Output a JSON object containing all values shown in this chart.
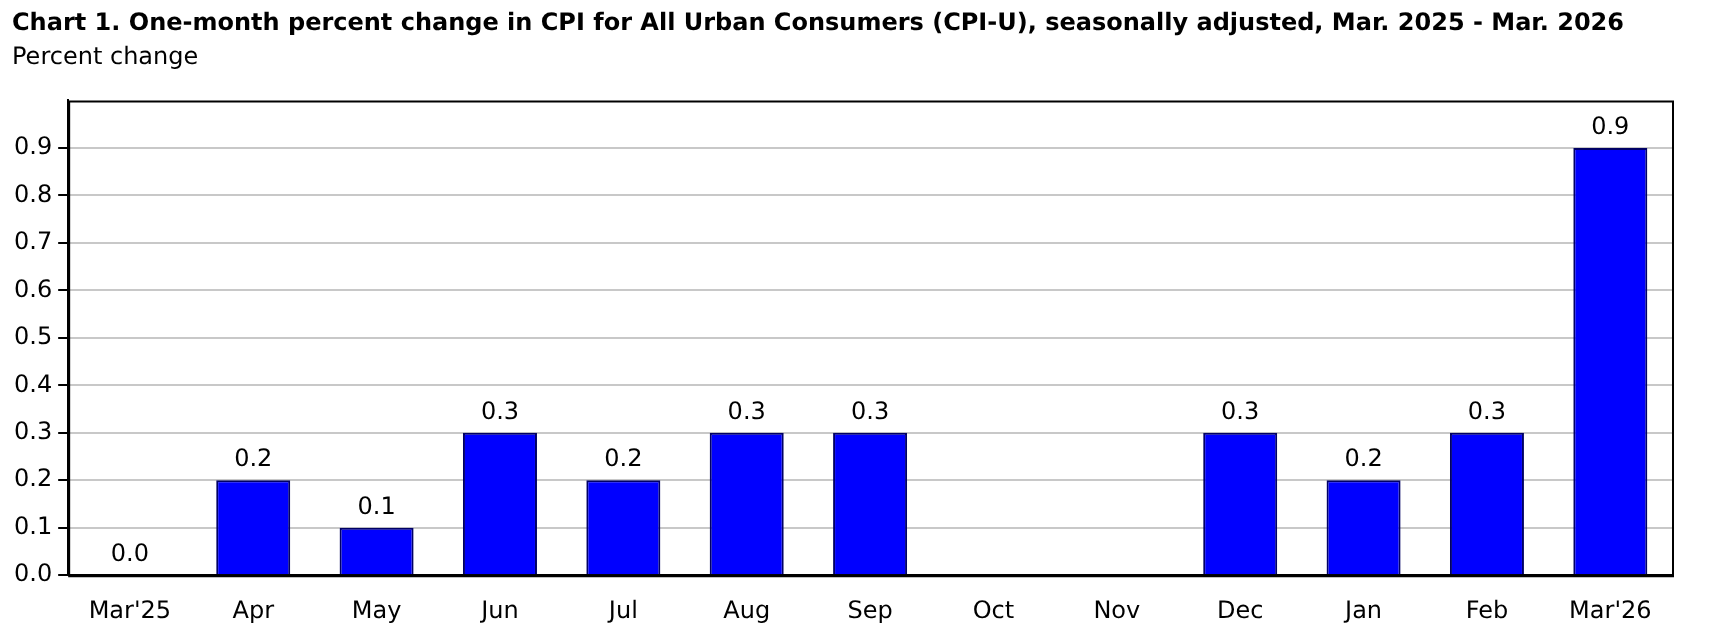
{
  "chart_data": {
    "type": "bar",
    "title": "Chart 1. One-month percent change in CPI for All Urban Consumers (CPI-U), seasonally adjusted, Mar. 2025 - Mar. 2026",
    "ylabel": "Percent change",
    "categories": [
      "Mar'25",
      "Apr",
      "May",
      "Jun",
      "Jul",
      "Aug",
      "Sep",
      "Oct",
      "Nov",
      "Dec",
      "Jan",
      "Feb",
      "Mar'26"
    ],
    "values": [
      0.0,
      0.2,
      0.1,
      0.3,
      0.2,
      0.3,
      0.3,
      null,
      null,
      0.3,
      0.2,
      0.3,
      0.9
    ],
    "value_labels": [
      "0.0",
      "0.2",
      "0.1",
      "0.3",
      "0.2",
      "0.3",
      "0.3",
      null,
      null,
      "0.3",
      "0.2",
      "0.3",
      "0.9"
    ],
    "color": "#0000ff",
    "ylim": [
      0,
      1
    ],
    "yticks": [
      {
        "value": 0,
        "label": "0.0"
      },
      {
        "value": 0.1,
        "label": "0.1"
      },
      {
        "value": 0.2,
        "label": "0.2"
      },
      {
        "value": 0.3,
        "label": "0.3"
      },
      {
        "value": 0.4,
        "label": "0.4"
      },
      {
        "value": 0.5,
        "label": "0.5"
      },
      {
        "value": 0.6,
        "label": "0.6"
      },
      {
        "value": 0.7,
        "label": "0.7"
      },
      {
        "value": 0.8,
        "label": "0.8"
      },
      {
        "value": 0.9,
        "label": "0.9"
      }
    ],
    "grid": "y",
    "legend": false
  }
}
